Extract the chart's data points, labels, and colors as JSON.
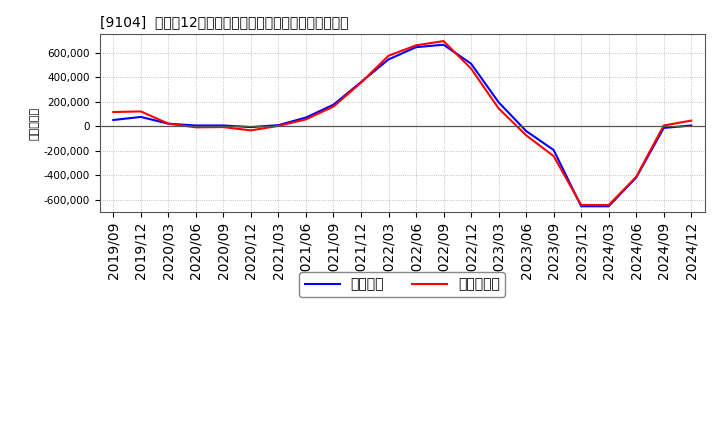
{
  "title": "[9104]  利益だ12か月移動合計の対前年同期増減額の推移",
  "ylabel": "（百万円）",
  "background_color": "#ffffff",
  "plot_bg_color": "#ffffff",
  "grid_color": "#b0b0b0",
  "ylim": [
    -700000,
    750000
  ],
  "yticks": [
    -600000,
    -400000,
    -200000,
    0,
    200000,
    400000,
    600000
  ],
  "line_blue": "#0000ff",
  "line_red": "#ff0000",
  "legend_blue": "経常利益",
  "legend_red": "当期純利益",
  "dates": [
    "2019/09",
    "2019/12",
    "2020/03",
    "2020/06",
    "2020/09",
    "2020/12",
    "2021/03",
    "2021/06",
    "2021/09",
    "2021/12",
    "2022/03",
    "2022/06",
    "2022/09",
    "2022/12",
    "2023/03",
    "2023/06",
    "2023/09",
    "2023/12",
    "2024/03",
    "2024/06",
    "2024/09",
    "2024/12"
  ],
  "blue_values": [
    50000,
    75000,
    20000,
    5000,
    5000,
    -8000,
    8000,
    70000,
    175000,
    360000,
    545000,
    645000,
    665000,
    510000,
    195000,
    -40000,
    -195000,
    -655000,
    -655000,
    -420000,
    -15000,
    5000
  ],
  "red_values": [
    115000,
    120000,
    20000,
    -10000,
    -8000,
    -35000,
    2000,
    55000,
    160000,
    355000,
    575000,
    660000,
    695000,
    470000,
    145000,
    -75000,
    -245000,
    -645000,
    -645000,
    -415000,
    5000,
    45000
  ]
}
